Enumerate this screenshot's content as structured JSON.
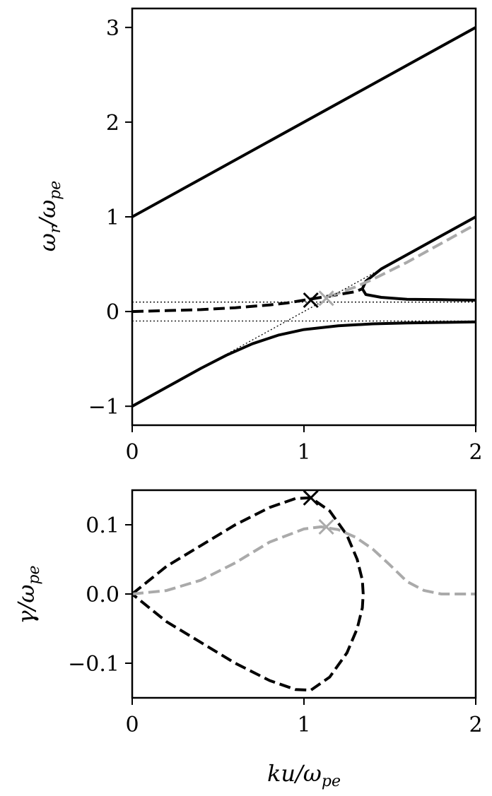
{
  "chart_data": [
    {
      "type": "line",
      "ylabel": "ω_r/ω_pe",
      "xlim": [
        0,
        2
      ],
      "ylim": [
        -1.2,
        3.2
      ],
      "x_ticks": [
        0,
        1,
        2
      ],
      "x_tick_labels": [
        "0",
        "1",
        "2"
      ],
      "y_ticks": [
        -1,
        0,
        1,
        2,
        3
      ],
      "y_tick_labels": [
        "−1",
        "0",
        "1",
        "2",
        "3"
      ],
      "series": [
        {
          "style": "solid",
          "color": "#000000",
          "x": [
            0,
            2
          ],
          "y": [
            1.0,
            3.0
          ]
        },
        {
          "style": "solid",
          "color": "#000000",
          "x": [
            0,
            0.2,
            0.4,
            0.55,
            0.7,
            0.85,
            1.0,
            1.2,
            1.4,
            1.6,
            1.8,
            2.0
          ],
          "y": [
            -1.0,
            -0.8,
            -0.6,
            -0.46,
            -0.34,
            -0.25,
            -0.19,
            -0.15,
            -0.13,
            -0.12,
            -0.115,
            -0.11
          ]
        },
        {
          "style": "solid",
          "color": "#000000",
          "x": [
            2.0,
            1.8,
            1.6,
            1.45,
            1.36,
            1.34,
            1.36,
            1.45,
            1.6,
            1.8,
            2.0
          ],
          "y": [
            0.12,
            0.125,
            0.13,
            0.15,
            0.18,
            0.24,
            0.32,
            0.45,
            0.6,
            0.8,
            1.0
          ]
        },
        {
          "style": "dashed",
          "color": "#000000",
          "x": [
            0,
            0.2,
            0.4,
            0.6,
            0.8,
            0.9,
            1.0,
            1.1,
            1.2,
            1.3,
            1.34
          ],
          "y": [
            0.0,
            0.01,
            0.02,
            0.04,
            0.07,
            0.09,
            0.12,
            0.15,
            0.18,
            0.21,
            0.24
          ]
        },
        {
          "style": "dashed",
          "color": "#aaaaaa",
          "x": [
            1.15,
            1.3,
            1.4,
            1.5,
            1.6,
            1.8,
            2.0
          ],
          "y": [
            0.16,
            0.26,
            0.34,
            0.43,
            0.52,
            0.72,
            0.92
          ]
        },
        {
          "style": "dotted",
          "color": "#000000",
          "x": [
            0,
            2
          ],
          "y": [
            0.1,
            0.1
          ]
        },
        {
          "style": "dotted",
          "color": "#000000",
          "x": [
            0,
            2
          ],
          "y": [
            -0.1,
            -0.1
          ]
        },
        {
          "style": "dotted",
          "color": "#000000",
          "x": [
            0.5,
            1.6
          ],
          "y": [
            -0.5,
            0.6
          ]
        }
      ],
      "markers": [
        {
          "symbol": "x",
          "color": "#000000",
          "x": 1.04,
          "y": 0.12
        },
        {
          "symbol": "x",
          "color": "#aaaaaa",
          "x": 1.13,
          "y": 0.14
        }
      ]
    },
    {
      "type": "line",
      "xlabel": "ku/ω_pe",
      "ylabel": "γ/ω_pe",
      "xlim": [
        0,
        2
      ],
      "ylim": [
        -0.15,
        0.15
      ],
      "x_ticks": [
        0,
        1,
        2
      ],
      "x_tick_labels": [
        "0",
        "1",
        "2"
      ],
      "y_ticks": [
        -0.1,
        0.0,
        0.1
      ],
      "y_tick_labels": [
        "−0.1",
        "0.0",
        "0.1"
      ],
      "series": [
        {
          "style": "dashed",
          "color": "#000000",
          "x": [
            0,
            0.2,
            0.4,
            0.6,
            0.8,
            0.95,
            1.04,
            1.15,
            1.25,
            1.31,
            1.34,
            1.345,
            1.34,
            1.31,
            1.25,
            1.15,
            1.04,
            0.95,
            0.8,
            0.6,
            0.4,
            0.2,
            0
          ],
          "y": [
            0,
            0.04,
            0.07,
            0.1,
            0.125,
            0.138,
            0.139,
            0.12,
            0.085,
            0.05,
            0.02,
            0,
            -0.02,
            -0.05,
            -0.085,
            -0.12,
            -0.139,
            -0.138,
            -0.125,
            -0.1,
            -0.07,
            -0.04,
            0
          ]
        },
        {
          "style": "dashed",
          "color": "#aaaaaa",
          "x": [
            0,
            0.2,
            0.4,
            0.6,
            0.8,
            1.0,
            1.1,
            1.2,
            1.3,
            1.4,
            1.5,
            1.6,
            1.7,
            1.8,
            2.0
          ],
          "y": [
            0,
            0.005,
            0.02,
            0.045,
            0.075,
            0.094,
            0.097,
            0.093,
            0.082,
            0.065,
            0.042,
            0.018,
            0.005,
            0.0,
            0.0
          ]
        }
      ],
      "markers": [
        {
          "symbol": "x",
          "color": "#000000",
          "x": 1.04,
          "y": 0.139
        },
        {
          "symbol": "x",
          "color": "#aaaaaa",
          "x": 1.13,
          "y": 0.097
        }
      ]
    }
  ]
}
